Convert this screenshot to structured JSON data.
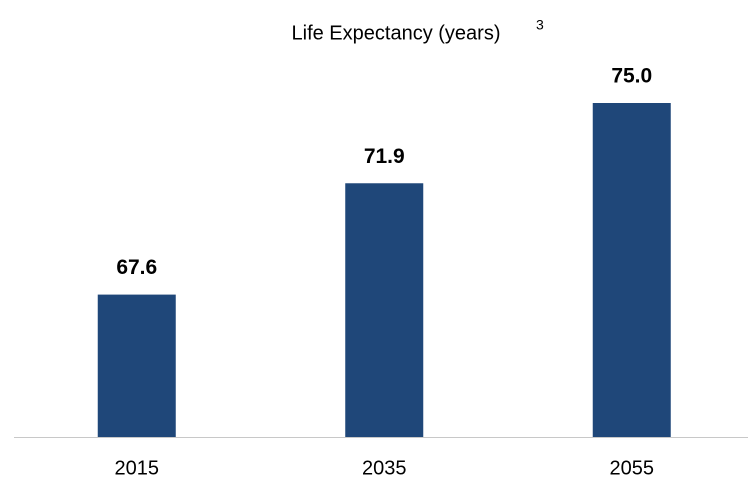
{
  "chart_data": {
    "type": "bar",
    "title": "Life Expectancy (years)",
    "title_superscript": "3",
    "categories": [
      "2015",
      "2035",
      "2055"
    ],
    "values": [
      67.6,
      71.9,
      75.0
    ],
    "value_labels": [
      "67.6",
      "71.9",
      "75.0"
    ],
    "color": "#1f4779",
    "ylim": [
      62.1,
      75
    ]
  }
}
